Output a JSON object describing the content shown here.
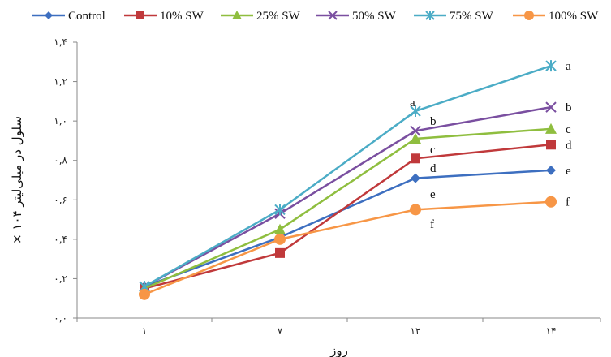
{
  "chart_data": {
    "type": "line",
    "title": "",
    "xlabel": "روز",
    "ylabel": "سلول در میلی‌لیتر ۱۰۴ ×",
    "x_ticks": [
      "۱",
      "۷",
      "۱۲",
      "۱۴"
    ],
    "y_ticks": [
      "۰,۰",
      "۰,۲",
      "۰,۴",
      "۰,۶",
      "۰,۸",
      "۱,۰",
      "۱,۲",
      "۱,۴"
    ],
    "y_tick_values": [
      0,
      0.2,
      0.4,
      0.6,
      0.8,
      1.0,
      1.2,
      1.4
    ],
    "ylim": [
      0,
      1.4
    ],
    "grid": false,
    "legend_position": "top",
    "series": [
      {
        "name": "Control",
        "color": "#3d6fc0",
        "marker": "diamond",
        "values": [
          0.16,
          0.41,
          0.71,
          0.75
        ],
        "labels": [
          "",
          "",
          "d",
          "e"
        ]
      },
      {
        "name": "10% SW",
        "color": "#c0393b",
        "marker": "square",
        "values": [
          0.15,
          0.33,
          0.81,
          0.88
        ],
        "labels": [
          "",
          "",
          "c",
          "d"
        ]
      },
      {
        "name": "25% SW",
        "color": "#8fbe3f",
        "marker": "triangle",
        "values": [
          0.15,
          0.45,
          0.91,
          0.96
        ],
        "labels": [
          "",
          "",
          "b",
          "c"
        ]
      },
      {
        "name": "50% SW",
        "color": "#7a4fa0",
        "marker": "x",
        "values": [
          0.16,
          0.53,
          0.95,
          1.07
        ],
        "labels": [
          "",
          "",
          "",
          "b"
        ]
      },
      {
        "name": "75% SW",
        "color": "#4bacc6",
        "marker": "star",
        "values": [
          0.16,
          0.55,
          1.05,
          1.28
        ],
        "labels": [
          "",
          "",
          "a",
          "a"
        ]
      },
      {
        "name": "100% SW",
        "color": "#f79646",
        "marker": "circle",
        "values": [
          0.12,
          0.4,
          0.55,
          0.59
        ],
        "labels": [
          "",
          "",
          "e",
          "f"
        ]
      }
    ],
    "extra_labels": [
      {
        "text": "f",
        "series": 5,
        "point": 2
      }
    ]
  }
}
